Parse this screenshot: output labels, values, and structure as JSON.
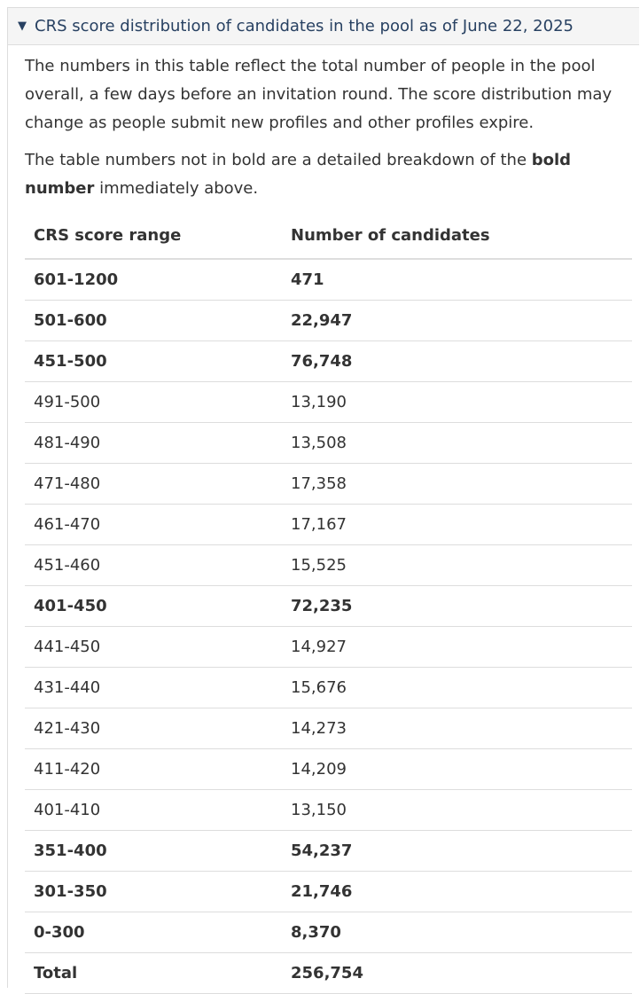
{
  "summary": {
    "title": "CRS score distribution of candidates in the pool as of June 22, 2025"
  },
  "intro": {
    "paragraph1": "The numbers in this table reflect the total number of people in the pool overall, a few days before an invitation round. The score distribution may change as people submit new profiles and other profiles expire.",
    "paragraph2_prefix": "The table numbers not in bold are a detailed breakdown of the ",
    "paragraph2_bold": "bold number",
    "paragraph2_suffix": " immediately above."
  },
  "table": {
    "headers": [
      "CRS score range",
      "Number of candidates"
    ],
    "rows": [
      {
        "range": "601-1200",
        "count": "471",
        "bold": true
      },
      {
        "range": "501-600",
        "count": "22,947",
        "bold": true
      },
      {
        "range": "451-500",
        "count": "76,748",
        "bold": true
      },
      {
        "range": "491-500",
        "count": "13,190",
        "bold": false
      },
      {
        "range": "481-490",
        "count": "13,508",
        "bold": false
      },
      {
        "range": "471-480",
        "count": "17,358",
        "bold": false
      },
      {
        "range": "461-470",
        "count": "17,167",
        "bold": false
      },
      {
        "range": "451-460",
        "count": "15,525",
        "bold": false
      },
      {
        "range": "401-450",
        "count": "72,235",
        "bold": true
      },
      {
        "range": "441-450",
        "count": "14,927",
        "bold": false
      },
      {
        "range": "431-440",
        "count": "15,676",
        "bold": false
      },
      {
        "range": "421-430",
        "count": "14,273",
        "bold": false
      },
      {
        "range": "411-420",
        "count": "14,209",
        "bold": false
      },
      {
        "range": "401-410",
        "count": "13,150",
        "bold": false
      },
      {
        "range": "351-400",
        "count": "54,237",
        "bold": true
      },
      {
        "range": "301-350",
        "count": "21,746",
        "bold": true
      },
      {
        "range": "0-300",
        "count": "8,370",
        "bold": true
      },
      {
        "range": "Total",
        "count": "256,754",
        "bold": true
      }
    ]
  }
}
